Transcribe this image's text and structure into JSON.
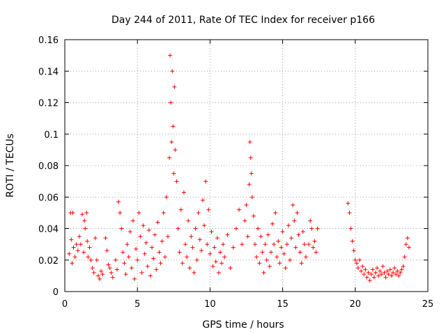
{
  "chart_data": {
    "type": "scatter",
    "title": "Day 244 of 2011, Rate Of TEC Index for receiver p166",
    "xlabel": "GPS time / hours",
    "ylabel": "ROTI / TECUs",
    "xlim": [
      0,
      25
    ],
    "ylim": [
      0,
      0.16
    ],
    "xticks": [
      0,
      5,
      10,
      15,
      20,
      25
    ],
    "yticks": [
      0,
      0.02,
      0.04,
      0.06,
      0.08,
      0.1,
      0.12,
      0.14,
      0.16
    ],
    "xtick_labels": [
      "0",
      "5",
      "10",
      "15",
      "20",
      "25"
    ],
    "ytick_labels": [
      "0",
      "0.02",
      "0.04",
      "0.06",
      "0.08",
      "0.1",
      "0.12",
      "0.14",
      "0.16"
    ],
    "grid": true,
    "marker": "+",
    "color": "#ff0000",
    "series": [
      {
        "name": "ROTI",
        "points": [
          [
            0.3,
            0.024
          ],
          [
            0.4,
            0.05
          ],
          [
            0.45,
            0.033
          ],
          [
            0.5,
            0.018
          ],
          [
            0.55,
            0.05
          ],
          [
            0.6,
            0.028
          ],
          [
            0.7,
            0.022
          ],
          [
            0.8,
            0.03
          ],
          [
            0.9,
            0.026
          ],
          [
            1.0,
            0.035
          ],
          [
            1.1,
            0.03
          ],
          [
            1.2,
            0.049
          ],
          [
            1.3,
            0.025
          ],
          [
            1.35,
            0.045
          ],
          [
            1.4,
            0.04
          ],
          [
            1.5,
            0.05
          ],
          [
            1.55,
            0.032
          ],
          [
            1.6,
            0.022
          ],
          [
            1.7,
            0.028
          ],
          [
            1.8,
            0.02
          ],
          [
            1.9,
            0.015
          ],
          [
            2.0,
            0.012
          ],
          [
            2.1,
            0.034
          ],
          [
            2.2,
            0.02
          ],
          [
            2.3,
            0.01
          ],
          [
            2.4,
            0.008
          ],
          [
            2.5,
            0.013
          ],
          [
            2.6,
            0.011
          ],
          [
            2.8,
            0.034
          ],
          [
            2.9,
            0.026
          ],
          [
            3.0,
            0.017
          ],
          [
            3.1,
            0.015
          ],
          [
            3.2,
            0.012
          ],
          [
            3.3,
            0.009
          ],
          [
            3.5,
            0.02
          ],
          [
            3.6,
            0.014
          ],
          [
            3.7,
            0.057
          ],
          [
            3.8,
            0.05
          ],
          [
            3.9,
            0.04
          ],
          [
            4.0,
            0.025
          ],
          [
            4.1,
            0.018
          ],
          [
            4.2,
            0.011
          ],
          [
            4.3,
            0.03
          ],
          [
            4.4,
            0.022
          ],
          [
            4.5,
            0.038
          ],
          [
            4.6,
            0.015
          ],
          [
            4.7,
            0.045
          ],
          [
            4.8,
            0.008
          ],
          [
            4.9,
            0.027
          ],
          [
            5.0,
            0.02
          ],
          [
            5.1,
            0.05
          ],
          [
            5.2,
            0.035
          ],
          [
            5.3,
            0.012
          ],
          [
            5.4,
            0.042
          ],
          [
            5.5,
            0.024
          ],
          [
            5.6,
            0.031
          ],
          [
            5.7,
            0.016
          ],
          [
            5.8,
            0.039
          ],
          [
            5.9,
            0.01
          ],
          [
            6.0,
            0.028
          ],
          [
            6.1,
            0.021
          ],
          [
            6.2,
            0.036
          ],
          [
            6.3,
            0.014
          ],
          [
            6.4,
            0.044
          ],
          [
            6.5,
            0.025
          ],
          [
            6.6,
            0.018
          ],
          [
            6.7,
            0.032
          ],
          [
            6.8,
            0.05
          ],
          [
            6.9,
            0.022
          ],
          [
            7.0,
            0.06
          ],
          [
            7.1,
            0.035
          ],
          [
            7.2,
            0.085
          ],
          [
            7.25,
            0.15
          ],
          [
            7.3,
            0.12
          ],
          [
            7.35,
            0.095
          ],
          [
            7.4,
            0.14
          ],
          [
            7.45,
            0.105
          ],
          [
            7.5,
            0.075
          ],
          [
            7.55,
            0.13
          ],
          [
            7.6,
            0.09
          ],
          [
            7.7,
            0.07
          ],
          [
            7.8,
            0.04
          ],
          [
            7.9,
            0.025
          ],
          [
            8.0,
            0.052
          ],
          [
            8.1,
            0.018
          ],
          [
            8.2,
            0.063
          ],
          [
            8.3,
            0.03
          ],
          [
            8.4,
            0.022
          ],
          [
            8.5,
            0.045
          ],
          [
            8.6,
            0.015
          ],
          [
            8.7,
            0.035
          ],
          [
            8.8,
            0.028
          ],
          [
            8.9,
            0.012
          ],
          [
            9.0,
            0.04
          ],
          [
            9.1,
            0.02
          ],
          [
            9.2,
            0.05
          ],
          [
            9.3,
            0.033
          ],
          [
            9.4,
            0.026
          ],
          [
            9.5,
            0.058
          ],
          [
            9.6,
            0.042
          ],
          [
            9.7,
            0.07
          ],
          [
            9.8,
            0.03
          ],
          [
            9.9,
            0.052
          ],
          [
            10.0,
            0.024
          ],
          [
            10.1,
            0.038
          ],
          [
            10.2,
            0.016
          ],
          [
            10.3,
            0.028
          ],
          [
            10.4,
            0.019
          ],
          [
            10.5,
            0.034
          ],
          [
            10.6,
            0.012
          ],
          [
            10.7,
            0.025
          ],
          [
            10.8,
            0.018
          ],
          [
            10.9,
            0.03
          ],
          [
            11.0,
            0.022
          ],
          [
            11.2,
            0.036
          ],
          [
            11.4,
            0.015
          ],
          [
            11.6,
            0.028
          ],
          [
            11.8,
            0.04
          ],
          [
            12.0,
            0.052
          ],
          [
            12.2,
            0.03
          ],
          [
            12.4,
            0.045
          ],
          [
            12.5,
            0.055
          ],
          [
            12.6,
            0.035
          ],
          [
            12.7,
            0.068
          ],
          [
            12.75,
            0.095
          ],
          [
            12.8,
            0.085
          ],
          [
            12.85,
            0.075
          ],
          [
            12.9,
            0.06
          ],
          [
            13.0,
            0.048
          ],
          [
            13.1,
            0.03
          ],
          [
            13.2,
            0.022
          ],
          [
            13.3,
            0.04
          ],
          [
            13.4,
            0.018
          ],
          [
            13.5,
            0.035
          ],
          [
            13.6,
            0.025
          ],
          [
            13.7,
            0.012
          ],
          [
            13.8,
            0.03
          ],
          [
            13.9,
            0.02
          ],
          [
            14.0,
            0.036
          ],
          [
            14.1,
            0.016
          ],
          [
            14.2,
            0.025
          ],
          [
            14.3,
            0.043
          ],
          [
            14.4,
            0.03
          ],
          [
            14.5,
            0.05
          ],
          [
            14.6,
            0.022
          ],
          [
            14.7,
            0.032
          ],
          [
            14.8,
            0.018
          ],
          [
            14.9,
            0.028
          ],
          [
            15.0,
            0.038
          ],
          [
            15.1,
            0.024
          ],
          [
            15.2,
            0.015
          ],
          [
            15.3,
            0.03
          ],
          [
            15.4,
            0.042
          ],
          [
            15.5,
            0.02
          ],
          [
            15.6,
            0.034
          ],
          [
            15.7,
            0.055
          ],
          [
            15.8,
            0.045
          ],
          [
            15.9,
            0.028
          ],
          [
            16.0,
            0.05
          ],
          [
            16.1,
            0.036
          ],
          [
            16.2,
            0.025
          ],
          [
            16.3,
            0.018
          ],
          [
            16.4,
            0.038
          ],
          [
            16.5,
            0.03
          ],
          [
            16.6,
            0.022
          ],
          [
            16.8,
            0.03
          ],
          [
            16.9,
            0.045
          ],
          [
            17.0,
            0.04
          ],
          [
            17.1,
            0.028
          ],
          [
            17.2,
            0.032
          ],
          [
            17.3,
            0.025
          ],
          [
            17.4,
            0.04
          ],
          [
            19.5,
            0.056
          ],
          [
            19.6,
            0.05
          ],
          [
            19.7,
            0.04
          ],
          [
            19.8,
            0.032
          ],
          [
            19.9,
            0.026
          ],
          [
            20.0,
            0.02
          ],
          [
            20.1,
            0.018
          ],
          [
            20.2,
            0.015
          ],
          [
            20.3,
            0.02
          ],
          [
            20.4,
            0.013
          ],
          [
            20.5,
            0.016
          ],
          [
            20.6,
            0.011
          ],
          [
            20.7,
            0.014
          ],
          [
            20.8,
            0.009
          ],
          [
            20.9,
            0.012
          ],
          [
            21.0,
            0.007
          ],
          [
            21.1,
            0.011
          ],
          [
            21.2,
            0.014
          ],
          [
            21.3,
            0.009
          ],
          [
            21.4,
            0.012
          ],
          [
            21.5,
            0.015
          ],
          [
            21.6,
            0.01
          ],
          [
            21.7,
            0.013
          ],
          [
            21.8,
            0.011
          ],
          [
            21.9,
            0.016
          ],
          [
            22.0,
            0.012
          ],
          [
            22.1,
            0.009
          ],
          [
            22.2,
            0.013
          ],
          [
            22.3,
            0.011
          ],
          [
            22.4,
            0.014
          ],
          [
            22.5,
            0.01
          ],
          [
            22.6,
            0.012
          ],
          [
            22.7,
            0.015
          ],
          [
            22.8,
            0.011
          ],
          [
            22.9,
            0.013
          ],
          [
            23.0,
            0.01
          ],
          [
            23.1,
            0.012
          ],
          [
            23.2,
            0.014
          ],
          [
            23.3,
            0.016
          ],
          [
            23.4,
            0.022
          ],
          [
            23.5,
            0.03
          ],
          [
            23.6,
            0.034
          ],
          [
            23.7,
            0.028
          ]
        ]
      }
    ]
  }
}
